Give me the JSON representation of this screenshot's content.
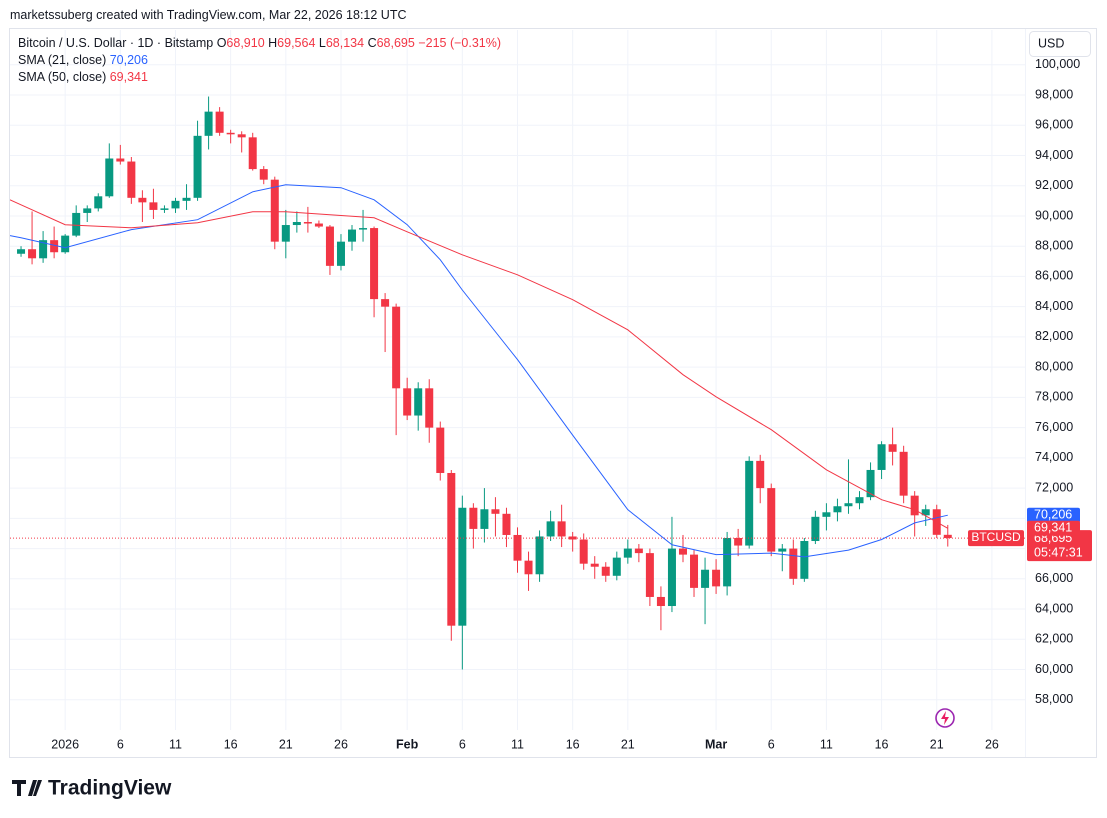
{
  "header": {
    "attribution": "marketssuberg created with TradingView.com, Mar 22, 2026 18:12 UTC",
    "symbol": "Bitcoin / U.S. Dollar · 1D · Bitstamp",
    "ohlc": [
      {
        "key": "O",
        "text": "68,910"
      },
      {
        "key": "H",
        "text": "69,564"
      },
      {
        "key": "L",
        "text": "68,134"
      },
      {
        "key": "C",
        "text": "68,695"
      }
    ],
    "change": "−215 (−0.31%)"
  },
  "currency": "USD",
  "footer": {
    "logo": "TradingView"
  },
  "chart_data": {
    "type": "candlestick",
    "grid": true,
    "xlim": [
      "2025-12-27",
      "2026-03-29"
    ],
    "ylim": [
      56000,
      102300
    ],
    "yticks": [
      {
        "value": 58000,
        "label": "58,000"
      },
      {
        "value": 60000,
        "label": "60,000"
      },
      {
        "value": 62000,
        "label": "62,000"
      },
      {
        "value": 64000,
        "label": "64,000"
      },
      {
        "value": 66000,
        "label": "66,000"
      },
      {
        "value": 68000,
        "label": "68,000"
      },
      {
        "value": 70000,
        "label": "70,000"
      },
      {
        "value": 72000,
        "label": "72,000"
      },
      {
        "value": 74000,
        "label": "74,000"
      },
      {
        "value": 76000,
        "label": "76,000"
      },
      {
        "value": 78000,
        "label": "78,000"
      },
      {
        "value": 80000,
        "label": "80,000"
      },
      {
        "value": 82000,
        "label": "82,000"
      },
      {
        "value": 84000,
        "label": "84,000"
      },
      {
        "value": 86000,
        "label": "86,000"
      },
      {
        "value": 88000,
        "label": "88,000"
      },
      {
        "value": 90000,
        "label": "90,000"
      },
      {
        "value": 92000,
        "label": "92,000"
      },
      {
        "value": 94000,
        "label": "94,000"
      },
      {
        "value": 96000,
        "label": "96,000"
      },
      {
        "value": 98000,
        "label": "98,000"
      },
      {
        "value": 100000,
        "label": "100,000"
      }
    ],
    "xticks": [
      {
        "value": "2026-01-01",
        "label": "2026"
      },
      {
        "value": "2026-01-06",
        "label": "6"
      },
      {
        "value": "2026-01-11",
        "label": "11"
      },
      {
        "value": "2026-01-16",
        "label": "16"
      },
      {
        "value": "2026-01-21",
        "label": "21"
      },
      {
        "value": "2026-01-26",
        "label": "26"
      },
      {
        "value": "2026-02-01",
        "label": "Feb"
      },
      {
        "value": "2026-02-06",
        "label": "6"
      },
      {
        "value": "2026-02-11",
        "label": "11"
      },
      {
        "value": "2026-02-16",
        "label": "16"
      },
      {
        "value": "2026-02-21",
        "label": "21"
      },
      {
        "value": "2026-03-01",
        "label": "Mar"
      },
      {
        "value": "2026-03-06",
        "label": "6"
      },
      {
        "value": "2026-03-11",
        "label": "11"
      },
      {
        "value": "2026-03-16",
        "label": "16"
      },
      {
        "value": "2026-03-21",
        "label": "21"
      },
      {
        "value": "2026-03-26",
        "label": "26"
      }
    ],
    "x": [
      "2025-12-28",
      "2025-12-29",
      "2025-12-30",
      "2025-12-31",
      "2026-01-01",
      "2026-01-02",
      "2026-01-03",
      "2026-01-04",
      "2026-01-05",
      "2026-01-06",
      "2026-01-07",
      "2026-01-08",
      "2026-01-09",
      "2026-01-10",
      "2026-01-11",
      "2026-01-12",
      "2026-01-13",
      "2026-01-14",
      "2026-01-15",
      "2026-01-16",
      "2026-01-17",
      "2026-01-18",
      "2026-01-19",
      "2026-01-20",
      "2026-01-21",
      "2026-01-22",
      "2026-01-23",
      "2026-01-24",
      "2026-01-25",
      "2026-01-26",
      "2026-01-27",
      "2026-01-28",
      "2026-01-29",
      "2026-01-30",
      "2026-01-31",
      "2026-02-01",
      "2026-02-02",
      "2026-02-03",
      "2026-02-04",
      "2026-02-05",
      "2026-02-06",
      "2026-02-07",
      "2026-02-08",
      "2026-02-09",
      "2026-02-10",
      "2026-02-11",
      "2026-02-12",
      "2026-02-13",
      "2026-02-14",
      "2026-02-15",
      "2026-02-16",
      "2026-02-17",
      "2026-02-18",
      "2026-02-19",
      "2026-02-20",
      "2026-02-21",
      "2026-02-22",
      "2026-02-23",
      "2026-02-24",
      "2026-02-25",
      "2026-02-26",
      "2026-02-27",
      "2026-02-28",
      "2026-03-01",
      "2026-03-02",
      "2026-03-03",
      "2026-03-04",
      "2026-03-05",
      "2026-03-06",
      "2026-03-07",
      "2026-03-08",
      "2026-03-09",
      "2026-03-10",
      "2026-03-11",
      "2026-03-12",
      "2026-03-13",
      "2026-03-14",
      "2026-03-15",
      "2026-03-16",
      "2026-03-17",
      "2026-03-18",
      "2026-03-19",
      "2026-03-20",
      "2026-03-21",
      "2026-03-22"
    ],
    "series": [
      {
        "name": "BTCUSD",
        "up_color": "#089981",
        "down_color": "#f23645",
        "last_value_label": "68,695",
        "countdown": "05:47:31",
        "open": [
          87500,
          87800,
          87200,
          88400,
          87600,
          88700,
          90200,
          90500,
          91300,
          93800,
          93600,
          91200,
          90900,
          90400,
          90500,
          91000,
          91200,
          95300,
          96900,
          95500,
          95400,
          95200,
          93100,
          92400,
          88300,
          89400,
          89600,
          89500,
          89300,
          86700,
          88300,
          89100,
          89200,
          84500,
          84000,
          78600,
          76800,
          78600,
          76000,
          73000,
          62900,
          70700,
          69300,
          70600,
          70300,
          68900,
          67200,
          66300,
          68800,
          69800,
          68800,
          68600,
          67000,
          66800,
          66200,
          67400,
          68000,
          67700,
          64800,
          64200,
          68000,
          67600,
          65400,
          66600,
          65500,
          68700,
          68200,
          73800,
          72000,
          67800,
          68000,
          66000,
          68500,
          70100,
          70400,
          70800,
          71000,
          71400,
          73200,
          74900,
          74400,
          71500,
          70200,
          70600,
          68910
        ],
        "high": [
          88000,
          90300,
          89000,
          89300,
          88800,
          90700,
          90700,
          91500,
          94800,
          94700,
          93900,
          91700,
          91800,
          90700,
          91200,
          92100,
          96300,
          97900,
          97200,
          95700,
          95600,
          95500,
          93300,
          92600,
          90400,
          90300,
          90600,
          89700,
          89400,
          88800,
          89400,
          90400,
          89300,
          84900,
          84200,
          79300,
          79000,
          79200,
          76400,
          73200,
          71500,
          71000,
          72000,
          71400,
          70700,
          69400,
          67800,
          69200,
          70500,
          70900,
          69100,
          69000,
          67500,
          67100,
          67800,
          68600,
          68300,
          68000,
          65500,
          70100,
          68900,
          67900,
          67400,
          67300,
          69100,
          69300,
          74100,
          74200,
          72300,
          68300,
          68600,
          68700,
          70500,
          71000,
          71300,
          73900,
          71800,
          73700,
          75100,
          76000,
          74800,
          71800,
          70900,
          70900,
          69564
        ],
        "low": [
          87300,
          86800,
          86900,
          87200,
          87500,
          88600,
          89600,
          90300,
          91200,
          93400,
          90800,
          89600,
          89800,
          90200,
          90200,
          90400,
          91000,
          94400,
          95300,
          94800,
          94200,
          93000,
          92100,
          87800,
          87200,
          88900,
          88900,
          89200,
          86100,
          86400,
          87700,
          88300,
          83300,
          81000,
          75500,
          76500,
          75800,
          75000,
          72500,
          61900,
          60000,
          68000,
          68400,
          68800,
          68100,
          66400,
          65200,
          65800,
          68500,
          68100,
          67800,
          66600,
          66000,
          65800,
          65900,
          67000,
          67100,
          64200,
          62600,
          63800,
          67100,
          64800,
          63000,
          65000,
          64900,
          67500,
          68000,
          71000,
          67500,
          66500,
          65600,
          65800,
          68300,
          69200,
          69800,
          70300,
          70600,
          71200,
          72600,
          73500,
          71000,
          68800,
          69500,
          68700,
          68134
        ],
        "close": [
          87800,
          87200,
          88400,
          87600,
          88700,
          90200,
          90500,
          91300,
          93800,
          93600,
          91200,
          90900,
          90400,
          90500,
          91000,
          91200,
          95300,
          96900,
          95500,
          95400,
          95200,
          93100,
          92400,
          88300,
          89400,
          89600,
          89500,
          89300,
          86700,
          88300,
          89100,
          89200,
          84500,
          84000,
          78600,
          76800,
          78600,
          76000,
          73000,
          62900,
          70700,
          69300,
          70600,
          70300,
          68900,
          67200,
          66300,
          68800,
          69800,
          68800,
          68600,
          67000,
          66800,
          66200,
          67400,
          68000,
          67700,
          64800,
          64200,
          68000,
          67600,
          65400,
          66600,
          65500,
          68700,
          68200,
          73800,
          72000,
          67800,
          68000,
          66000,
          68500,
          70100,
          70400,
          70800,
          71000,
          71400,
          73200,
          74900,
          74400,
          71500,
          70200,
          70600,
          68910,
          68695
        ]
      }
    ],
    "indicators": [
      {
        "name": "SMA (21, close)",
        "color": "#2962ff",
        "last_value_label": "70,206",
        "x": [
          "2025-12-27",
          "2025-12-28",
          "2026-01-01",
          "2026-01-07",
          "2026-01-13",
          "2026-01-18",
          "2026-01-21",
          "2026-01-26",
          "2026-01-29",
          "2026-02-01",
          "2026-02-04",
          "2026-02-06",
          "2026-02-11",
          "2026-02-16",
          "2026-02-21",
          "2026-02-25",
          "2026-03-01",
          "2026-03-06",
          "2026-03-09",
          "2026-03-13",
          "2026-03-16",
          "2026-03-19",
          "2026-03-22"
        ],
        "values": [
          88700,
          88560,
          87900,
          89100,
          89750,
          91600,
          92060,
          91870,
          91070,
          89420,
          87100,
          85100,
          80500,
          75500,
          70570,
          68250,
          67600,
          67700,
          67450,
          67900,
          68600,
          69700,
          70206
        ]
      },
      {
        "name": "SMA (50, close)",
        "color": "#f23645",
        "last_value_label": "69,341",
        "x": [
          "2025-12-27",
          "2025-12-28",
          "2026-01-01",
          "2026-01-07",
          "2026-01-13",
          "2026-01-18",
          "2026-01-21",
          "2026-01-29",
          "2026-02-01",
          "2026-02-06",
          "2026-02-11",
          "2026-02-16",
          "2026-02-21",
          "2026-02-26",
          "2026-03-01",
          "2026-03-06",
          "2026-03-11",
          "2026-03-16",
          "2026-03-19",
          "2026-03-22"
        ],
        "values": [
          91070,
          90740,
          89420,
          89220,
          89550,
          90280,
          90280,
          89880,
          88950,
          87430,
          86110,
          84460,
          82470,
          79500,
          78040,
          75860,
          73210,
          71230,
          70570,
          69341
        ]
      }
    ]
  }
}
